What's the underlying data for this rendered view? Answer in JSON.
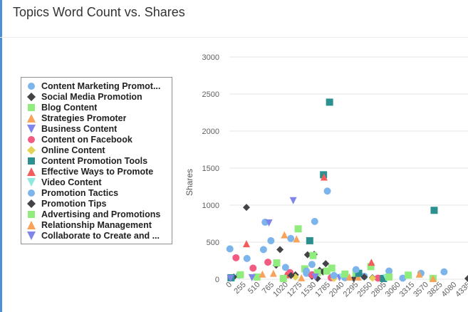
{
  "title": "Topics Word Count vs. Shares",
  "colors": {
    "accent": "#4a90d9"
  },
  "chart_data": {
    "type": "scatter",
    "title": "Topics Word Count vs. Shares",
    "xlabel": "",
    "ylabel": "Shares",
    "xlim": [
      0,
      4335
    ],
    "ylim": [
      0,
      3000
    ],
    "x_ticks": [
      "0",
      "255",
      "510",
      "765",
      "1020",
      "1275",
      "1530",
      "1785",
      "2040",
      "2295",
      "2550",
      "2805",
      "3060",
      "3315",
      "3570",
      "3825",
      "4080",
      "4335"
    ],
    "y_ticks": [
      "0",
      "500",
      "1000",
      "1500",
      "2000",
      "2500",
      "3000"
    ],
    "grid": true,
    "legend_position": "left",
    "series": [
      {
        "name": "Content Marketing Promot...",
        "marker": "circle",
        "color": "#7cb5ec",
        "points": [
          [
            10,
            410
          ],
          [
            320,
            280
          ],
          [
            650,
            770
          ],
          [
            755,
            520
          ],
          [
            1115,
            550
          ],
          [
            1500,
            200
          ],
          [
            1550,
            780
          ],
          [
            1780,
            1190
          ],
          [
            2900,
            110
          ],
          [
            3150,
            15
          ],
          [
            3480,
            80
          ],
          [
            3900,
            100
          ],
          [
            1400,
            80
          ],
          [
            2450,
            40
          ],
          [
            180,
            55
          ]
        ]
      },
      {
        "name": "Social Media Promotion",
        "marker": "diamond",
        "color": "#434348",
        "points": [
          [
            310,
            970
          ],
          [
            920,
            400
          ],
          [
            1420,
            330
          ],
          [
            1540,
            335
          ],
          [
            2260,
            10
          ],
          [
            1700,
            100
          ],
          [
            80,
            30
          ],
          [
            1500,
            40
          ],
          [
            4335,
            10
          ],
          [
            2600,
            20
          ],
          [
            1200,
            60
          ],
          [
            1600,
            10
          ]
        ]
      },
      {
        "name": "Blog Content",
        "marker": "square",
        "color": "#90ed7d",
        "points": [
          [
            1250,
            680
          ],
          [
            1370,
            140
          ],
          [
            1770,
            110
          ],
          [
            1860,
            150
          ],
          [
            2570,
            170
          ],
          [
            3250,
            55
          ],
          [
            3700,
            10
          ],
          [
            1520,
            320
          ],
          [
            200,
            60
          ],
          [
            500,
            30
          ],
          [
            2300,
            80
          ]
        ]
      },
      {
        "name": "Strategies Promoter",
        "marker": "triangle",
        "color": "#f7a35c",
        "points": [
          [
            1000,
            600
          ],
          [
            1220,
            545
          ],
          [
            2340,
            30
          ],
          [
            3450,
            70
          ],
          [
            3700,
            10
          ],
          [
            800,
            80
          ]
        ]
      },
      {
        "name": "Business Content",
        "marker": "triangle-down",
        "color": "#8085e9",
        "points": [
          [
            1160,
            1060
          ],
          [
            720,
            760
          ],
          [
            2000,
            20
          ]
        ]
      },
      {
        "name": "Content on Facebook",
        "marker": "circle",
        "color": "#f15c80",
        "points": [
          [
            120,
            290
          ],
          [
            430,
            150
          ],
          [
            700,
            230
          ],
          [
            1100,
            90
          ],
          [
            1500,
            60
          ],
          [
            1850,
            20
          ],
          [
            2700,
            15
          ]
        ]
      },
      {
        "name": "Online Content",
        "marker": "diamond",
        "color": "#e4d354",
        "points": [
          [
            1200,
            30
          ],
          [
            2600,
            15
          ],
          [
            1900,
            10
          ]
        ]
      },
      {
        "name": "Content Promotion Tools",
        "marker": "square",
        "color": "#2b908f",
        "points": [
          [
            1710,
            1410
          ],
          [
            1820,
            2390
          ],
          [
            1460,
            520
          ],
          [
            3720,
            930
          ],
          [
            2350,
            80
          ],
          [
            2800,
            10
          ],
          [
            30,
            20
          ]
        ]
      },
      {
        "name": "Effective Ways to Promote",
        "marker": "triangle",
        "color": "#f45b5b",
        "points": [
          [
            1720,
            1380
          ],
          [
            310,
            480
          ],
          [
            2580,
            230
          ],
          [
            1030,
            60
          ]
        ]
      },
      {
        "name": "Video Content",
        "marker": "triangle-down",
        "color": "#91e8e1",
        "points": [
          [
            2050,
            30
          ],
          [
            2850,
            20
          ]
        ]
      },
      {
        "name": "Promotion Tactics",
        "marker": "circle",
        "color": "#7cb5ec",
        "points": [
          [
            2300,
            130
          ],
          [
            1020,
            160
          ],
          [
            620,
            400
          ],
          [
            1400,
            110
          ],
          [
            2100,
            20
          ],
          [
            1900,
            50
          ]
        ]
      },
      {
        "name": "Promotion Tips",
        "marker": "diamond",
        "color": "#434348",
        "points": [
          [
            850,
            190
          ],
          [
            1640,
            120
          ],
          [
            1750,
            210
          ],
          [
            2450,
            30
          ],
          [
            1120,
            50
          ]
        ]
      },
      {
        "name": "Advertising and Promotions",
        "marker": "square",
        "color": "#90ed7d",
        "points": [
          [
            860,
            220
          ],
          [
            1600,
            90
          ],
          [
            2100,
            70
          ],
          [
            2900,
            30
          ],
          [
            980,
            10
          ]
        ]
      },
      {
        "name": "Relationship Management",
        "marker": "triangle",
        "color": "#f7a35c",
        "points": [
          [
            600,
            70
          ],
          [
            1310,
            20
          ],
          [
            2180,
            30
          ]
        ]
      },
      {
        "name": "Collaborate to Create and ...",
        "marker": "triangle-down",
        "color": "#8085e9",
        "points": [
          [
            20,
            10
          ],
          [
            410,
            20
          ],
          [
            1560,
            30
          ]
        ]
      }
    ]
  }
}
